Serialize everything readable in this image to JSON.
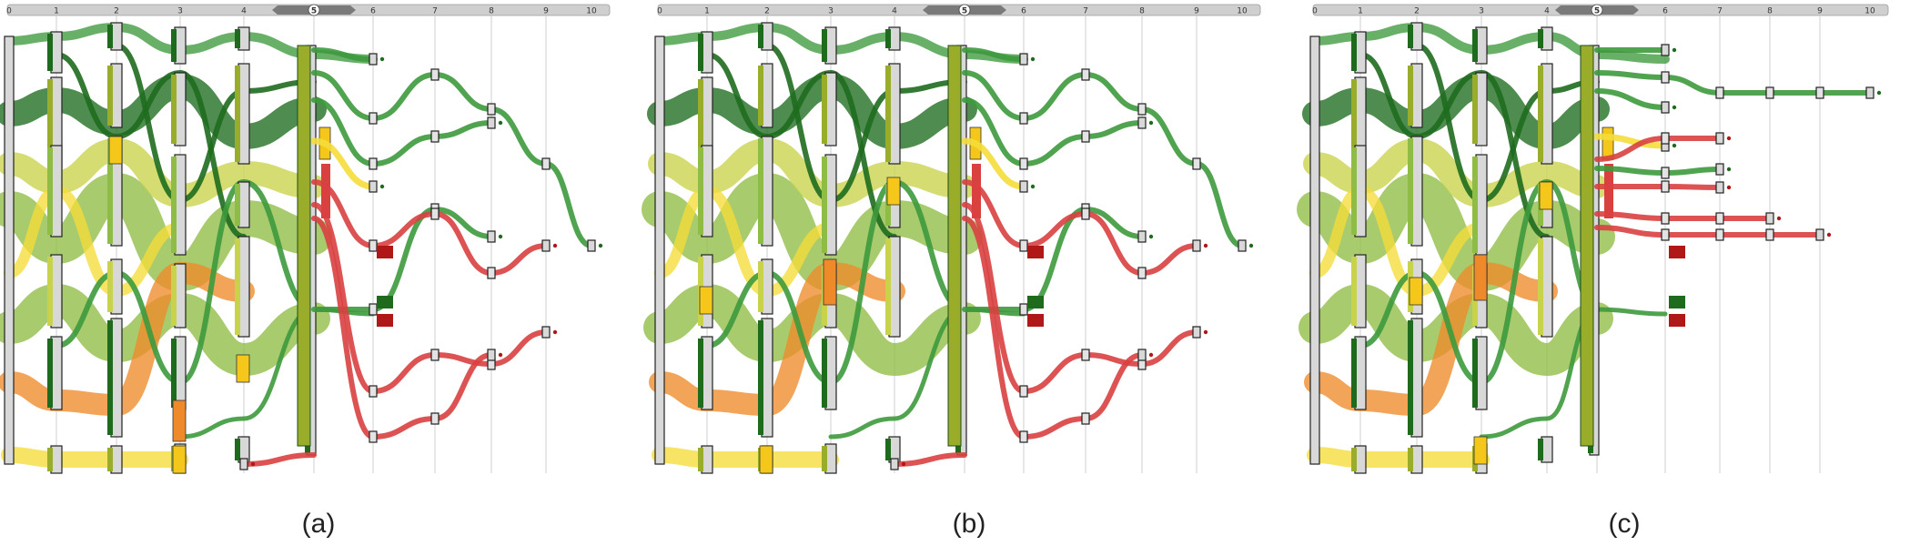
{
  "panels": [
    {
      "caption": "(a)",
      "ticks": [
        "0",
        "1",
        "2",
        "3",
        "4",
        "5",
        "6",
        "7",
        "8",
        "9",
        "10"
      ],
      "active_tick": "5"
    },
    {
      "caption": "(b)",
      "ticks": [
        "0",
        "1",
        "2",
        "3",
        "4",
        "5",
        "6",
        "7",
        "8",
        "9",
        "10"
      ],
      "active_tick": "5"
    },
    {
      "caption": "(c)",
      "ticks": [
        "0",
        "1",
        "2",
        "3",
        "4",
        "5",
        "6",
        "7",
        "8",
        "9",
        "10"
      ],
      "active_tick": "5"
    }
  ],
  "colors": {
    "dark_green": "#1e6b1e",
    "green": "#3d9a3d",
    "light_green": "#8fbc45",
    "olive": "#9aad2a",
    "yellow_green": "#c8d24a",
    "yellow": "#f5dd3a",
    "amber": "#f5c71a",
    "orange": "#ee8a2a",
    "red": "#d94040",
    "dark_red": "#b01818",
    "node_gray": "#d8d8d8"
  }
}
